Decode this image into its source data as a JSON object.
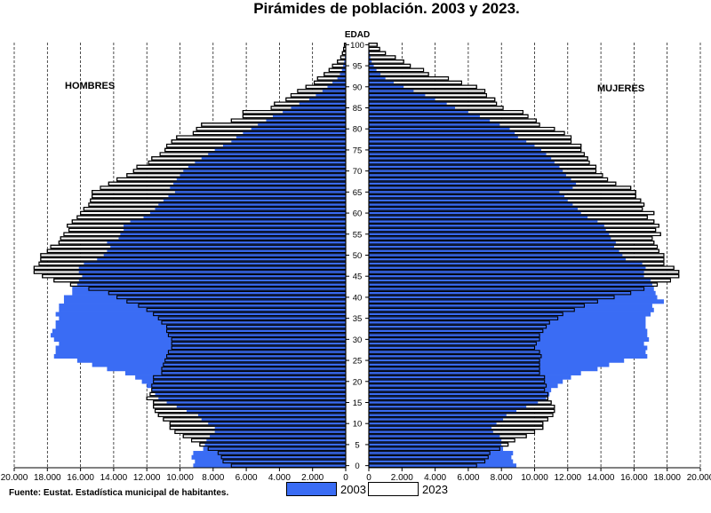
{
  "title": "Pirámides de población. 2003 y 2023.",
  "source": "Fuente: Eustat. Estadística municipal de habitantes.",
  "colors": {
    "s2003": "#3a6cf4",
    "s2023": "#ffffff",
    "outline": "#000000",
    "grid": "#000000"
  },
  "chart_data": {
    "type": "population-pyramid",
    "title": "Pirámides de población. 2003 y 2023.",
    "axis_label_age": "EDAD",
    "left_label": "HOMBRES",
    "right_label": "MUJERES",
    "xlim": [
      0,
      20000
    ],
    "x_ticks": [
      "0",
      "2.000",
      "4.000",
      "6.000",
      "8.000",
      "10.000",
      "12.000",
      "14.000",
      "16.000",
      "18.000",
      "20.000"
    ],
    "x_ticks_left": [
      "20.000",
      "18.000",
      "16.000",
      "14.000",
      "12.000",
      "10.000",
      "8.000",
      "6.000",
      "4.000",
      "2.000",
      "0"
    ],
    "age_ticks": [
      "0",
      "5",
      "10",
      "15",
      "20",
      "25",
      "30",
      "35",
      "40",
      "45",
      "50",
      "55",
      "60",
      "65",
      "70",
      "75",
      "80",
      "85",
      "90",
      "95",
      "100"
    ],
    "ages": [
      0,
      1,
      2,
      3,
      4,
      5,
      6,
      7,
      8,
      9,
      10,
      11,
      12,
      13,
      14,
      15,
      16,
      17,
      18,
      19,
      20,
      21,
      22,
      23,
      24,
      25,
      26,
      27,
      28,
      29,
      30,
      31,
      32,
      33,
      34,
      35,
      36,
      37,
      38,
      39,
      40,
      41,
      42,
      43,
      44,
      45,
      46,
      47,
      48,
      49,
      50,
      51,
      52,
      53,
      54,
      55,
      56,
      57,
      58,
      59,
      60,
      61,
      62,
      63,
      64,
      65,
      66,
      67,
      68,
      69,
      70,
      71,
      72,
      73,
      74,
      75,
      76,
      77,
      78,
      79,
      80,
      81,
      82,
      83,
      84,
      85,
      86,
      87,
      88,
      89,
      90,
      91,
      92,
      93,
      94,
      95,
      96,
      97,
      98,
      99,
      100
    ],
    "series": [
      {
        "name": "2003",
        "men": [
          9200,
          9100,
          9300,
          9200,
          8600,
          8500,
          8400,
          8200,
          7900,
          7900,
          8300,
          8700,
          8900,
          9600,
          10200,
          10800,
          11300,
          11500,
          11700,
          12000,
          12300,
          12700,
          13300,
          14400,
          15300,
          16200,
          17600,
          17500,
          17500,
          17300,
          17600,
          17800,
          17700,
          17500,
          17500,
          17300,
          17500,
          17300,
          17300,
          17000,
          17000,
          16500,
          16500,
          16200,
          16100,
          15900,
          16100,
          16100,
          15800,
          15000,
          14600,
          14400,
          14200,
          14400,
          13700,
          13600,
          13400,
          13400,
          13000,
          12200,
          11800,
          11500,
          11300,
          11000,
          10700,
          10300,
          10600,
          10400,
          10200,
          10000,
          9800,
          9500,
          9100,
          8700,
          8300,
          7900,
          7400,
          6900,
          6600,
          6200,
          5700,
          5300,
          4800,
          4400,
          3800,
          3300,
          2800,
          2200,
          1800,
          1400,
          1100,
          800,
          500,
          350,
          230,
          150,
          90,
          50,
          30,
          20,
          10
        ],
        "women": [
          8900,
          8700,
          8600,
          8700,
          8100,
          8000,
          8000,
          7900,
          7500,
          7400,
          7700,
          8100,
          8300,
          8900,
          9500,
          10200,
          10700,
          10900,
          11000,
          11400,
          11700,
          12200,
          12800,
          13800,
          14500,
          15400,
          16800,
          16700,
          16800,
          16600,
          16900,
          16800,
          16800,
          16700,
          16700,
          16700,
          17000,
          17200,
          17100,
          17800,
          17400,
          17300,
          17200,
          17100,
          17000,
          16600,
          16600,
          16700,
          16500,
          15500,
          15300,
          15100,
          14800,
          14900,
          14600,
          14500,
          14300,
          14200,
          13800,
          13200,
          12800,
          12600,
          12300,
          12000,
          11800,
          11500,
          12300,
          12500,
          12200,
          11900,
          11700,
          11500,
          11200,
          11000,
          10700,
          10400,
          10000,
          9500,
          9000,
          8800,
          8500,
          7900,
          7300,
          6700,
          6000,
          5200,
          4700,
          4000,
          3400,
          2700,
          2100,
          1500,
          1000,
          700,
          460,
          300,
          170,
          90,
          50,
          30,
          15
        ]
      },
      {
        "name": "2023",
        "men": [
          6900,
          7400,
          7500,
          7700,
          8300,
          8800,
          9300,
          9800,
          10300,
          10600,
          10600,
          11000,
          11300,
          11500,
          11600,
          11600,
          12000,
          11800,
          11700,
          11700,
          11600,
          11600,
          11100,
          11100,
          11000,
          10900,
          10800,
          10700,
          10500,
          10500,
          10500,
          10700,
          10800,
          10800,
          11100,
          11300,
          11600,
          12000,
          12500,
          13200,
          13800,
          14300,
          15500,
          16600,
          17600,
          18300,
          18800,
          18800,
          18500,
          18400,
          18400,
          18000,
          17800,
          17300,
          17200,
          17000,
          16700,
          16800,
          16500,
          16200,
          16000,
          15800,
          15500,
          15400,
          15300,
          15300,
          14800,
          14300,
          13800,
          13200,
          12800,
          12600,
          11900,
          11700,
          11200,
          10900,
          10800,
          10500,
          10200,
          9200,
          9000,
          8700,
          6900,
          6200,
          6200,
          4500,
          4300,
          3600,
          3300,
          2900,
          2400,
          1900,
          1700,
          1300,
          1000,
          800,
          500,
          300,
          200,
          130,
          80
        ],
        "women": [
          6500,
          7000,
          7200,
          7300,
          7900,
          8400,
          8800,
          9500,
          10000,
          10500,
          10500,
          10800,
          11100,
          11200,
          11200,
          11000,
          10800,
          10800,
          10600,
          10700,
          10600,
          10600,
          10300,
          10300,
          10300,
          10300,
          10400,
          10300,
          10000,
          10100,
          10300,
          10300,
          10500,
          10700,
          10900,
          11400,
          11700,
          12400,
          13000,
          13800,
          14800,
          15800,
          16600,
          17400,
          18200,
          18700,
          18700,
          18400,
          17800,
          17800,
          17800,
          17500,
          17400,
          17200,
          17100,
          17600,
          17300,
          17500,
          17200,
          16800,
          17200,
          16500,
          16600,
          16400,
          16100,
          16100,
          15800,
          14900,
          14400,
          14100,
          13700,
          13700,
          13300,
          13200,
          13000,
          12800,
          12800,
          12200,
          12200,
          11800,
          11200,
          10300,
          10100,
          9600,
          9300,
          8100,
          7700,
          7600,
          7100,
          7000,
          6500,
          5600,
          4800,
          3600,
          3300,
          2500,
          2100,
          1600,
          1000,
          650,
          500
        ]
      }
    ],
    "legend": [
      "2003",
      "2023"
    ],
    "legend_position": "bottom"
  }
}
